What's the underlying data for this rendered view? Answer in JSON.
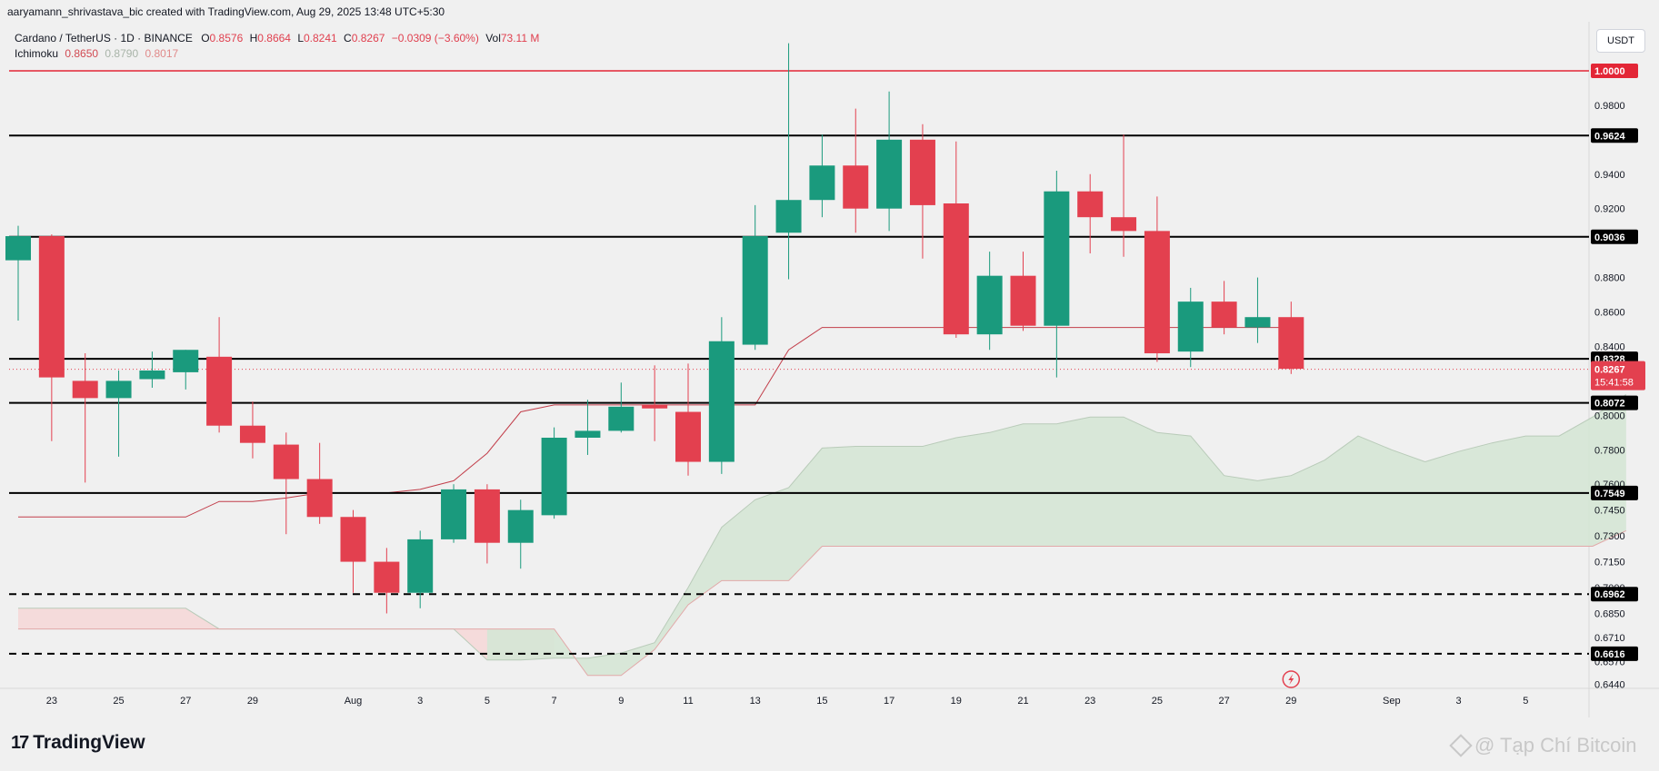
{
  "header": {
    "credit": "aaryamann_shrivastava_bic created with TradingView.com, Aug 29, 2025 13:48 UTC+5:30"
  },
  "legend": {
    "symbol": "Cardano / TetherUS · 1D · BINANCE",
    "o_label": "O",
    "o_value": "0.8576",
    "h_label": "H",
    "h_value": "0.8664",
    "l_label": "L",
    "l_value": "0.8241",
    "c_label": "C",
    "c_value": "0.8267",
    "change": "−0.0309 (−3.60%)",
    "vol_label": "Vol",
    "vol_value": "73.11 M",
    "ichimoku_label": "Ichimoku",
    "ichimoku_v1": "0.8650",
    "ichimoku_v2": "0.8790",
    "ichimoku_v3": "0.8017"
  },
  "currency": "USDT",
  "brand": {
    "name": "TradingView",
    "mark": "17"
  },
  "watermark": "@ Tạp Chí Bitcoin",
  "chart_data": {
    "type": "candlestick",
    "colors": {
      "up": "#1a9a7d",
      "down": "#e3404f",
      "cloud_bull": "#d5e5d5",
      "cloud_bear": "#f5d8d8",
      "baseline": "#c23e4a",
      "hline": "#000000",
      "fib": "#e32636"
    },
    "y_ticks": [
      "0.9800",
      "0.9400",
      "0.9200",
      "0.8800",
      "0.8600",
      "0.8400",
      "0.8000",
      "0.7800",
      "0.7600",
      "0.7450",
      "0.7300",
      "0.7150",
      "0.7000",
      "0.6850",
      "0.6710",
      "0.6570",
      "0.6440"
    ],
    "x_ticks": [
      {
        "label": "23",
        "idx": 1
      },
      {
        "label": "25",
        "idx": 3
      },
      {
        "label": "27",
        "idx": 5
      },
      {
        "label": "29",
        "idx": 7
      },
      {
        "label": "Aug",
        "idx": 10
      },
      {
        "label": "3",
        "idx": 12
      },
      {
        "label": "5",
        "idx": 14
      },
      {
        "label": "7",
        "idx": 16
      },
      {
        "label": "9",
        "idx": 18
      },
      {
        "label": "11",
        "idx": 20
      },
      {
        "label": "13",
        "idx": 22
      },
      {
        "label": "15",
        "idx": 24
      },
      {
        "label": "17",
        "idx": 26
      },
      {
        "label": "19",
        "idx": 28
      },
      {
        "label": "21",
        "idx": 30
      },
      {
        "label": "23",
        "idx": 32
      },
      {
        "label": "25",
        "idx": 34
      },
      {
        "label": "27",
        "idx": 36
      },
      {
        "label": "29",
        "idx": 38
      },
      {
        "label": "Sep",
        "idx": 41
      },
      {
        "label": "3",
        "idx": 43
      },
      {
        "label": "5",
        "idx": 45
      }
    ],
    "levels": [
      {
        "label": "1.0000",
        "value": 1.0,
        "style": "fib"
      },
      {
        "label": "0.9624",
        "value": 0.9624,
        "style": "solid"
      },
      {
        "label": "0.9036",
        "value": 0.9036,
        "style": "solid"
      },
      {
        "label": "0.8328",
        "value": 0.8328,
        "style": "solid"
      },
      {
        "label": "0.8072",
        "value": 0.8072,
        "style": "solid"
      },
      {
        "label": "0.7549",
        "value": 0.7549,
        "style": "solid"
      },
      {
        "label": "0.6962",
        "value": 0.6962,
        "style": "dashed"
      },
      {
        "label": "0.6616",
        "value": 0.6616,
        "style": "dashed"
      }
    ],
    "last_price": {
      "label": "0.8267",
      "value": 0.8267,
      "countdown": "15:41:58"
    },
    "candles": [
      {
        "o": 0.89,
        "h": 0.91,
        "l": 0.855,
        "c": 0.904
      },
      {
        "o": 0.904,
        "h": 0.905,
        "l": 0.785,
        "c": 0.822
      },
      {
        "o": 0.82,
        "h": 0.836,
        "l": 0.761,
        "c": 0.81
      },
      {
        "o": 0.81,
        "h": 0.826,
        "l": 0.776,
        "c": 0.82
      },
      {
        "o": 0.821,
        "h": 0.837,
        "l": 0.816,
        "c": 0.826
      },
      {
        "o": 0.825,
        "h": 0.838,
        "l": 0.815,
        "c": 0.838
      },
      {
        "o": 0.834,
        "h": 0.857,
        "l": 0.79,
        "c": 0.794
      },
      {
        "o": 0.794,
        "h": 0.808,
        "l": 0.775,
        "c": 0.784
      },
      {
        "o": 0.783,
        "h": 0.79,
        "l": 0.731,
        "c": 0.763
      },
      {
        "o": 0.763,
        "h": 0.784,
        "l": 0.737,
        "c": 0.741
      },
      {
        "o": 0.741,
        "h": 0.745,
        "l": 0.697,
        "c": 0.715
      },
      {
        "o": 0.715,
        "h": 0.723,
        "l": 0.685,
        "c": 0.697
      },
      {
        "o": 0.697,
        "h": 0.733,
        "l": 0.688,
        "c": 0.728
      },
      {
        "o": 0.728,
        "h": 0.76,
        "l": 0.726,
        "c": 0.757
      },
      {
        "o": 0.757,
        "h": 0.76,
        "l": 0.714,
        "c": 0.726
      },
      {
        "o": 0.726,
        "h": 0.751,
        "l": 0.711,
        "c": 0.745
      },
      {
        "o": 0.742,
        "h": 0.793,
        "l": 0.74,
        "c": 0.787
      },
      {
        "o": 0.787,
        "h": 0.809,
        "l": 0.777,
        "c": 0.791
      },
      {
        "o": 0.791,
        "h": 0.819,
        "l": 0.79,
        "c": 0.805
      },
      {
        "o": 0.806,
        "h": 0.829,
        "l": 0.785,
        "c": 0.804
      },
      {
        "o": 0.802,
        "h": 0.83,
        "l": 0.765,
        "c": 0.773
      },
      {
        "o": 0.773,
        "h": 0.857,
        "l": 0.766,
        "c": 0.843
      },
      {
        "o": 0.841,
        "h": 0.922,
        "l": 0.838,
        "c": 0.904
      },
      {
        "o": 0.906,
        "h": 1.016,
        "l": 0.879,
        "c": 0.925
      },
      {
        "o": 0.925,
        "h": 0.963,
        "l": 0.915,
        "c": 0.945
      },
      {
        "o": 0.945,
        "h": 0.978,
        "l": 0.906,
        "c": 0.92
      },
      {
        "o": 0.92,
        "h": 0.988,
        "l": 0.907,
        "c": 0.96
      },
      {
        "o": 0.96,
        "h": 0.969,
        "l": 0.891,
        "c": 0.922
      },
      {
        "o": 0.923,
        "h": 0.959,
        "l": 0.845,
        "c": 0.847
      },
      {
        "o": 0.847,
        "h": 0.895,
        "l": 0.838,
        "c": 0.881
      },
      {
        "o": 0.881,
        "h": 0.895,
        "l": 0.849,
        "c": 0.852
      },
      {
        "o": 0.852,
        "h": 0.942,
        "l": 0.822,
        "c": 0.93
      },
      {
        "o": 0.93,
        "h": 0.94,
        "l": 0.894,
        "c": 0.915
      },
      {
        "o": 0.915,
        "h": 0.963,
        "l": 0.892,
        "c": 0.907
      },
      {
        "o": 0.907,
        "h": 0.927,
        "l": 0.831,
        "c": 0.836
      },
      {
        "o": 0.837,
        "h": 0.874,
        "l": 0.828,
        "c": 0.866
      },
      {
        "o": 0.866,
        "h": 0.878,
        "l": 0.847,
        "c": 0.851
      },
      {
        "o": 0.851,
        "h": 0.88,
        "l": 0.842,
        "c": 0.857
      },
      {
        "o": 0.857,
        "h": 0.866,
        "l": 0.824,
        "c": 0.827
      }
    ],
    "baseline": [
      0.741,
      0.741,
      0.741,
      0.741,
      0.741,
      0.741,
      0.75,
      0.75,
      0.752,
      0.755,
      0.755,
      0.755,
      0.757,
      0.762,
      0.778,
      0.802,
      0.806,
      0.806,
      0.806,
      0.806,
      0.806,
      0.806,
      0.806,
      0.838,
      0.851,
      0.851,
      0.851,
      0.851,
      0.851,
      0.851,
      0.851,
      0.851,
      0.851,
      0.851,
      0.851,
      0.851,
      0.851,
      0.851,
      0.851
    ],
    "span_a": [
      0.688,
      0.688,
      0.688,
      0.688,
      0.688,
      0.688,
      0.676,
      0.676,
      0.676,
      0.676,
      0.676,
      0.676,
      0.676,
      0.676,
      0.658,
      0.658,
      0.659,
      0.659,
      0.662,
      0.668,
      0.7,
      0.735,
      0.751,
      0.758,
      0.781,
      0.782,
      0.782,
      0.782,
      0.787,
      0.79,
      0.795,
      0.795,
      0.799,
      0.799,
      0.79,
      0.788,
      0.765,
      0.762,
      0.765,
      0.774,
      0.788,
      0.78,
      0.773,
      0.779,
      0.784,
      0.788,
      0.788,
      0.799,
      0.812
    ],
    "span_b": [
      0.676,
      0.676,
      0.676,
      0.676,
      0.676,
      0.676,
      0.676,
      0.676,
      0.676,
      0.676,
      0.676,
      0.676,
      0.676,
      0.676,
      0.676,
      0.676,
      0.676,
      0.649,
      0.649,
      0.664,
      0.69,
      0.704,
      0.704,
      0.704,
      0.724,
      0.724,
      0.724,
      0.724,
      0.724,
      0.724,
      0.724,
      0.724,
      0.724,
      0.724,
      0.724,
      0.724,
      0.724,
      0.724,
      0.724,
      0.724,
      0.724,
      0.724,
      0.724,
      0.724,
      0.724,
      0.724,
      0.724,
      0.724,
      0.733
    ]
  }
}
